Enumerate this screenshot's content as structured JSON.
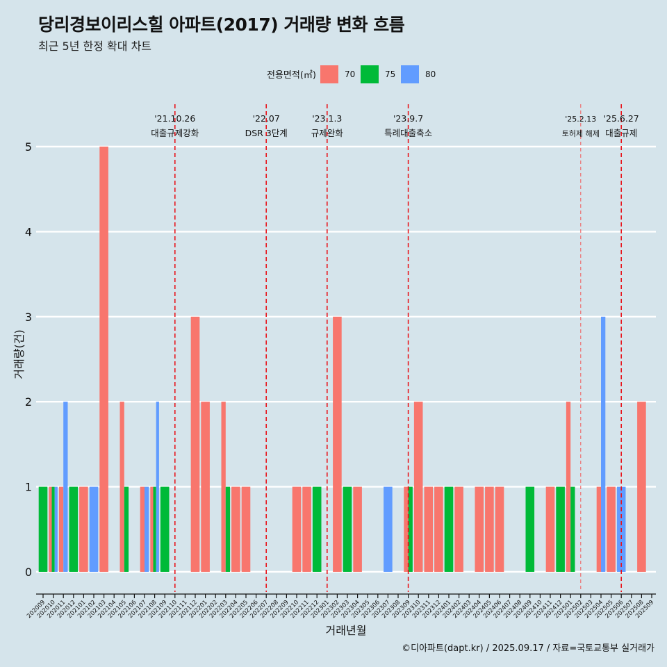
{
  "title": "당리경보이리스힐 아파트(2017) 거래량 변화 흐름",
  "subtitle": "최근 5년 한정 확대 차트",
  "caption": "©디아파트(dapt.kr) / 2025.09.17 / 자료=국토교통부 실거래가",
  "chart_data": {
    "type": "bar",
    "xlabel": "거래년월",
    "ylabel": "거래량(건)",
    "ylim": [
      0,
      5
    ],
    "yticks": [
      "0",
      "1",
      "2",
      "3",
      "4",
      "5"
    ],
    "legend": {
      "title": "전용면적(㎡)",
      "position": "top"
    },
    "categories": [
      "202009",
      "202010",
      "202011",
      "202012",
      "202101",
      "202102",
      "202103",
      "202104",
      "202105",
      "202106",
      "202107",
      "202108",
      "202109",
      "202110",
      "202111",
      "202112",
      "202201",
      "202202",
      "202203",
      "202204",
      "202205",
      "202206",
      "202207",
      "202208",
      "202209",
      "202210",
      "202211",
      "202212",
      "202301",
      "202302",
      "202303",
      "202304",
      "202305",
      "202306",
      "202307",
      "202308",
      "202309",
      "202310",
      "202311",
      "202312",
      "202401",
      "202402",
      "202403",
      "202404",
      "202405",
      "202406",
      "202407",
      "202408",
      "202409",
      "202410",
      "202411",
      "202412",
      "202501",
      "202502",
      "202503",
      "202504",
      "202505",
      "202506",
      "202507",
      "202508",
      "202509"
    ],
    "series": [
      {
        "name": "70",
        "color": "#f8766d",
        "values": [
          0,
          1,
          1,
          0,
          1,
          0,
          5,
          0,
          2,
          0,
          1,
          1,
          0,
          0,
          0,
          3,
          2,
          0,
          2,
          1,
          1,
          0,
          0,
          0,
          0,
          1,
          1,
          0,
          0,
          3,
          0,
          1,
          0,
          0,
          0,
          0,
          1,
          2,
          1,
          1,
          0,
          1,
          0,
          1,
          1,
          1,
          0,
          0,
          0,
          0,
          1,
          0,
          2,
          0,
          0,
          1,
          1,
          0,
          0,
          2,
          0
        ]
      },
      {
        "name": "75",
        "color": "#00ba38",
        "values": [
          1,
          1,
          0,
          1,
          0,
          0,
          0,
          0,
          1,
          0,
          0,
          1,
          1,
          0,
          0,
          0,
          0,
          0,
          1,
          0,
          0,
          0,
          0,
          0,
          0,
          0,
          0,
          1,
          0,
          0,
          1,
          0,
          0,
          0,
          0,
          0,
          1,
          0,
          0,
          0,
          1,
          0,
          0,
          0,
          0,
          0,
          0,
          0,
          1,
          0,
          0,
          1,
          1,
          0,
          0,
          0,
          0,
          0,
          0,
          0,
          0
        ]
      },
      {
        "name": "80",
        "color": "#619cff",
        "values": [
          0,
          1,
          2,
          0,
          0,
          1,
          0,
          0,
          0,
          0,
          1,
          2,
          0,
          0,
          0,
          0,
          0,
          0,
          0,
          0,
          0,
          0,
          0,
          0,
          0,
          0,
          0,
          0,
          0,
          0,
          0,
          0,
          0,
          0,
          1,
          0,
          0,
          0,
          0,
          0,
          0,
          0,
          0,
          0,
          0,
          0,
          0,
          0,
          0,
          0,
          0,
          0,
          0,
          0,
          0,
          3,
          0,
          1,
          0,
          0,
          0
        ]
      }
    ],
    "events": [
      {
        "date": "'21.10.26",
        "label": "대출규제강화",
        "category": "202110",
        "style": "major"
      },
      {
        "date": "'22.07",
        "label": "DSR 3단계",
        "category": "202207",
        "style": "major"
      },
      {
        "date": "'23.1.3",
        "label": "규제완화",
        "category": "202301",
        "style": "major"
      },
      {
        "date": "'23.9.7",
        "label": "특례대출축소",
        "category": "202309",
        "style": "major"
      },
      {
        "date": "'25.2.13",
        "label": "토허제 해제",
        "category": "202502",
        "style": "minor"
      },
      {
        "date": "'25.6.27",
        "label": "대출규제",
        "category": "202506",
        "style": "major"
      }
    ]
  }
}
